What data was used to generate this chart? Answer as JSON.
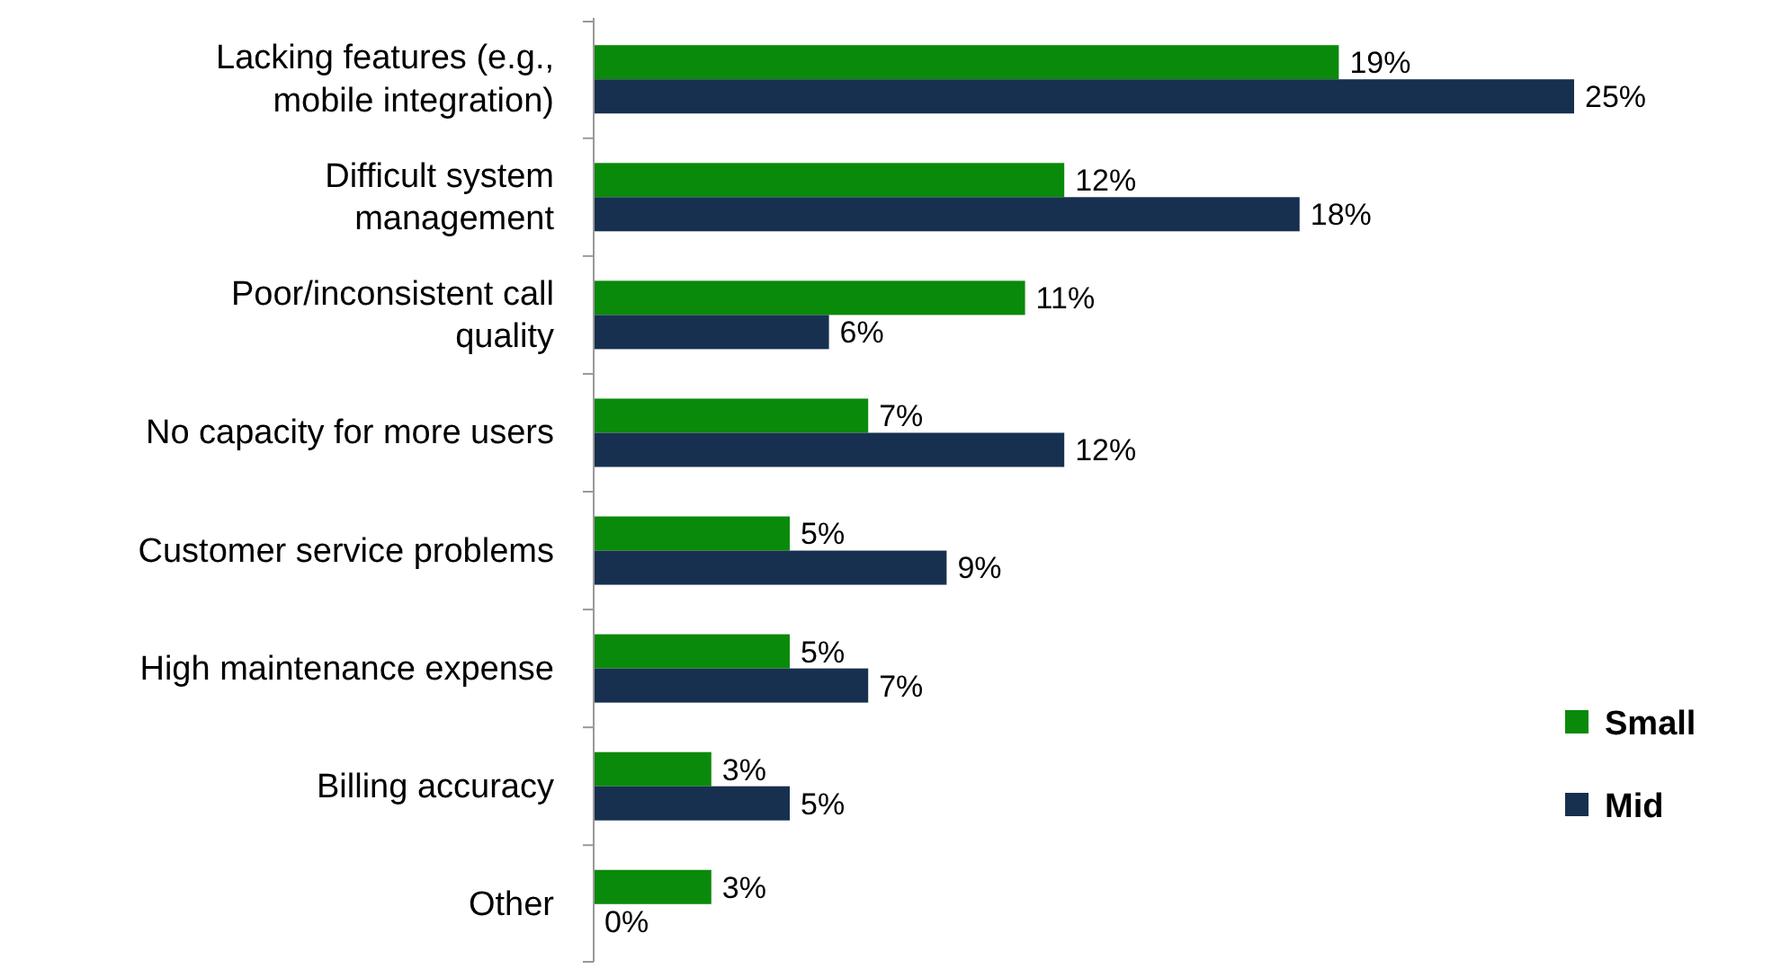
{
  "chart_data": {
    "type": "bar",
    "orientation": "horizontal",
    "categories": [
      "Lacking features (e.g., mobile integration)",
      "Difficult system management",
      "Poor/inconsistent call quality",
      "No capacity for more users",
      "Customer service problems",
      "High maintenance expense",
      "Billing accuracy",
      "Other"
    ],
    "series": [
      {
        "name": "Small",
        "color": "#0a8a0a",
        "values": [
          19,
          12,
          11,
          7,
          5,
          5,
          3,
          3
        ],
        "value_labels": [
          "19%",
          "12%",
          "11%",
          "7%",
          "5%",
          "5%",
          "3%",
          "3%"
        ]
      },
      {
        "name": "Mid",
        "color": "#17304f",
        "values": [
          25,
          18,
          6,
          12,
          9,
          7,
          5,
          0
        ],
        "value_labels": [
          "25%",
          "18%",
          "6%",
          "12%",
          "9%",
          "7%",
          "5%",
          "0%"
        ]
      }
    ],
    "legend": "bottom right"
  }
}
